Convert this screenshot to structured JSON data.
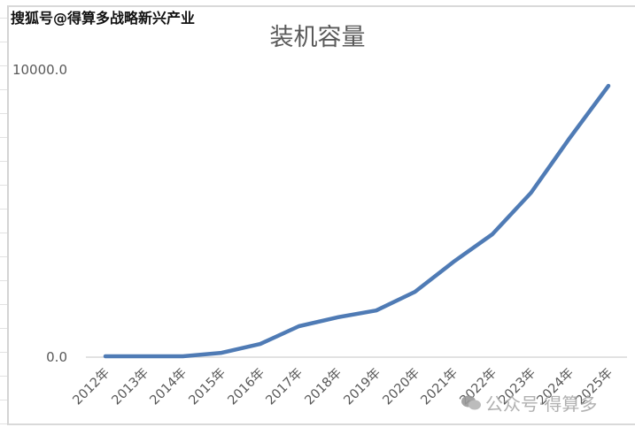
{
  "watermark_top": "搜狐号@得算多战略新兴产业",
  "watermark_bottom": "公众号·得算多",
  "chart_data": {
    "type": "line",
    "title": "装机容量",
    "xlabel": "",
    "ylabel": "",
    "ylim": [
      0,
      10000
    ],
    "y_tick_labels": [
      "0.0",
      "10000.0"
    ],
    "grid": false,
    "legend": null,
    "categories": [
      "2012年",
      "2013年",
      "2014年",
      "2015年",
      "2016年",
      "2017年",
      "2018年",
      "2019年",
      "2020年",
      "2021年",
      "2022年",
      "2023年",
      "2024年",
      "2025年"
    ],
    "series": [
      {
        "name": "装机容量",
        "color": "#4f7bb5",
        "values": [
          0,
          0,
          0,
          120,
          430,
          1050,
          1360,
          1600,
          2250,
          3300,
          4260,
          5710,
          7620,
          9440
        ]
      }
    ]
  },
  "colors": {
    "line": "#4f7bb5",
    "axis": "#d9d9d9",
    "text": "#595959"
  }
}
